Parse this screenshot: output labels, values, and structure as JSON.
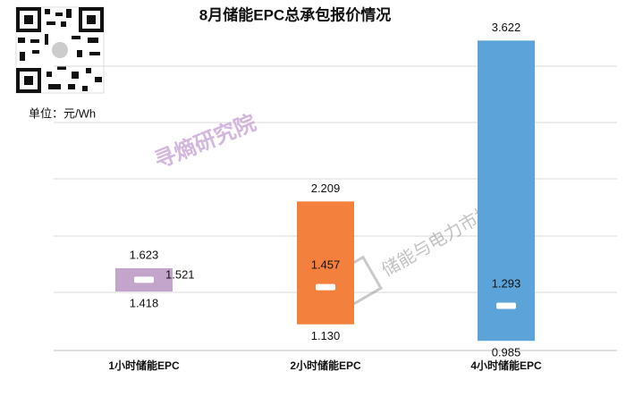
{
  "chart_data": {
    "type": "floating-bar",
    "title": "8月储能EPC总承包报价情况",
    "unit": "单位：元/Wh",
    "watermarks": [
      "寻熵研究院",
      "储能与电力市场"
    ],
    "categories": [
      "1小时储能EPC",
      "2小时储能EPC",
      "4小时储能EPC"
    ],
    "high": [
      1.623,
      2.209,
      3.622
    ],
    "low": [
      1.418,
      1.13,
      0.985
    ],
    "avg": [
      1.521,
      1.457,
      1.293
    ],
    "value_labels": {
      "low": [
        "1.418",
        "1.130",
        "0.985"
      ]
    },
    "colors": [
      "#c3a5cc",
      "#f4803d",
      "#5ba3d8"
    ],
    "ylim": [
      0.9,
      3.9
    ]
  }
}
